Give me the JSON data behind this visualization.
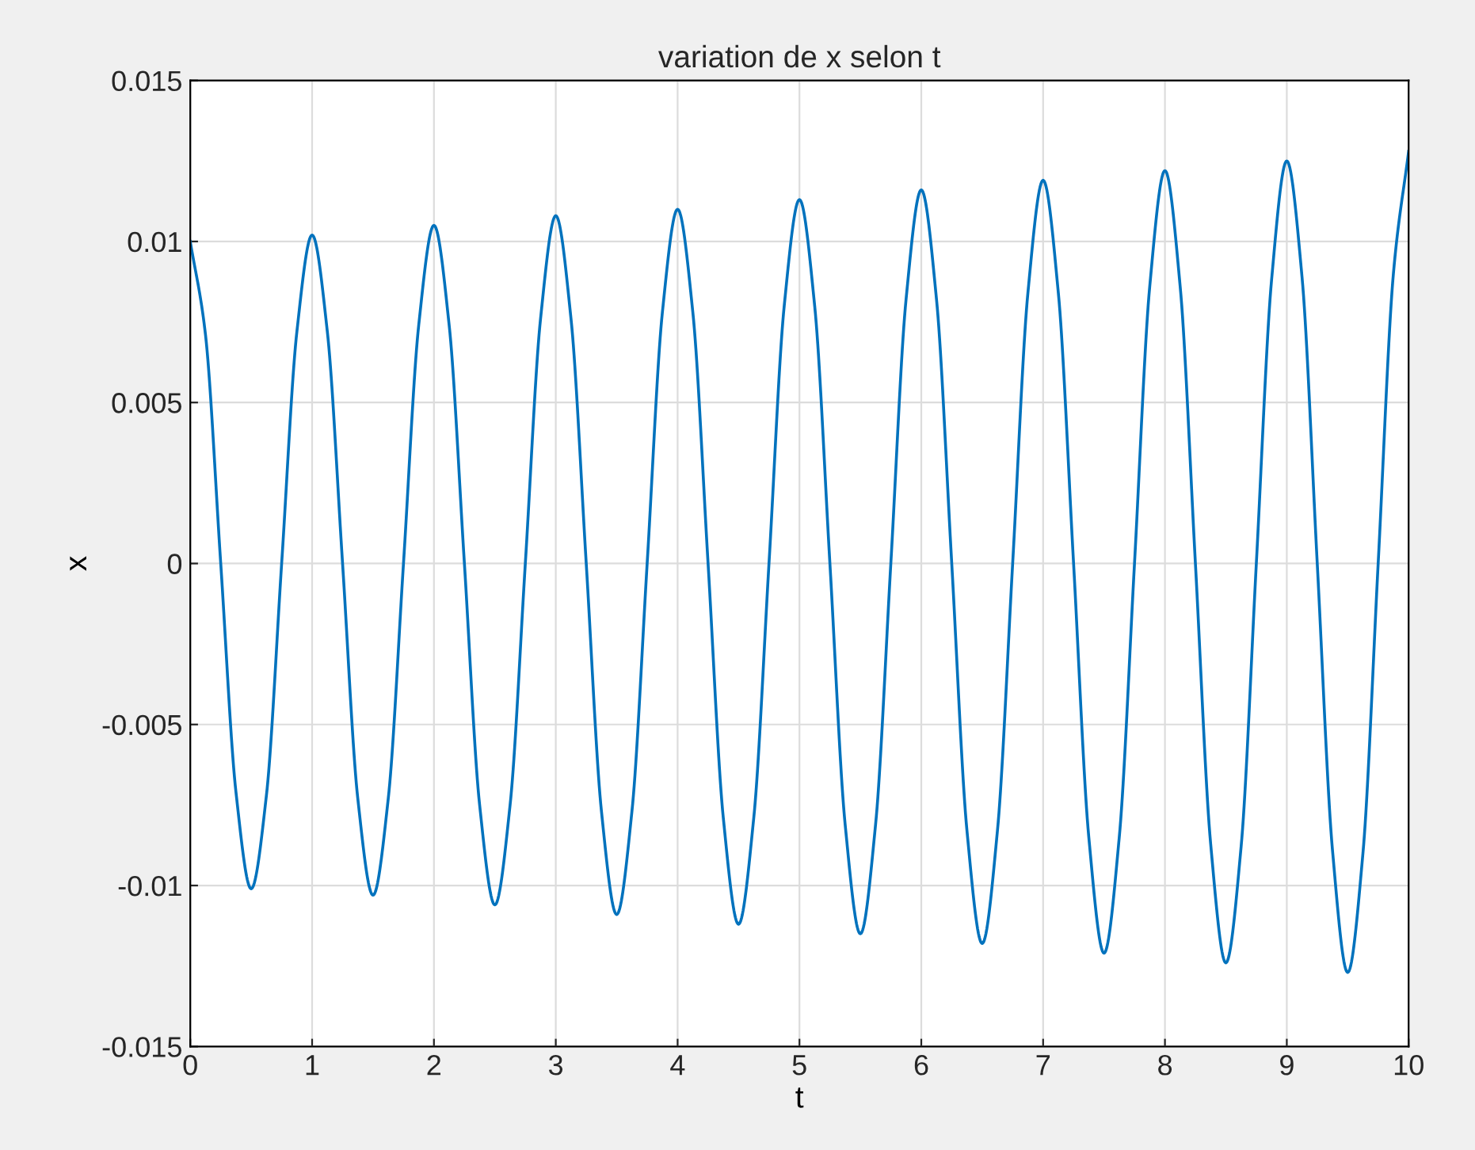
{
  "chart_data": {
    "type": "line",
    "title": "variation de x selon t",
    "xlabel": "t",
    "ylabel": "x",
    "x": [
      0,
      0.125,
      0.25,
      0.375,
      0.5,
      0.625,
      0.75,
      0.875,
      1,
      1.125,
      1.25,
      1.375,
      1.5,
      1.625,
      1.75,
      1.875,
      2,
      2.125,
      2.25,
      2.375,
      2.5,
      2.625,
      2.75,
      2.875,
      3,
      3.125,
      3.25,
      3.375,
      3.5,
      3.625,
      3.75,
      3.875,
      4,
      4.125,
      4.25,
      4.375,
      4.5,
      4.625,
      4.75,
      4.875,
      5,
      5.125,
      5.25,
      5.375,
      5.5,
      5.625,
      5.75,
      5.875,
      6,
      6.125,
      6.25,
      6.375,
      6.5,
      6.625,
      6.75,
      6.875,
      7,
      7.125,
      7.25,
      7.375,
      7.5,
      7.625,
      7.75,
      7.875,
      8,
      8.125,
      8.25,
      8.375,
      8.5,
      8.625,
      8.75,
      8.875,
      9,
      9.125,
      9.25,
      9.375,
      9.5,
      9.625,
      9.75,
      9.875,
      10
    ],
    "series": [
      {
        "color": "#0072bd",
        "values": [
          0.01,
          0.0071,
          0,
          -0.0071,
          -0.0101,
          -0.0072,
          0,
          0.0072,
          0.0102,
          0.0072,
          0,
          -0.0073,
          -0.0103,
          -0.0073,
          0,
          0.0074,
          0.0105,
          0.0074,
          0,
          -0.0075,
          -0.0106,
          -0.0075,
          0,
          0.0076,
          0.0108,
          0.0076,
          0,
          -0.0077,
          -0.0109,
          -0.0077,
          0,
          0.0078,
          0.011,
          0.0078,
          0,
          -0.0079,
          -0.0112,
          -0.0079,
          0,
          0.008,
          0.0113,
          0.008,
          0,
          -0.0081,
          -0.0115,
          -0.0081,
          0,
          0.0082,
          0.0116,
          0.0082,
          0,
          -0.0083,
          -0.0118,
          -0.0083,
          0,
          0.0084,
          0.0119,
          0.0084,
          0,
          -0.0085,
          -0.0121,
          -0.0085,
          0,
          0.0086,
          0.0122,
          0.0086,
          0,
          -0.0087,
          -0.0124,
          -0.0088,
          0,
          0.0088,
          0.0125,
          0.0089,
          0,
          -0.0089,
          -0.0127,
          -0.009,
          0,
          0.009,
          0.0128
        ]
      }
    ],
    "xlim": [
      0,
      10
    ],
    "xticks": [
      0,
      1,
      2,
      3,
      4,
      5,
      6,
      7,
      8,
      9,
      10
    ],
    "ylim": [
      -0.015,
      0.015
    ],
    "yticks": [
      -0.015,
      -0.01,
      -0.005,
      0,
      0.005,
      0.01,
      0.015
    ],
    "grid": true,
    "marker": "none",
    "line_style": "solid"
  }
}
